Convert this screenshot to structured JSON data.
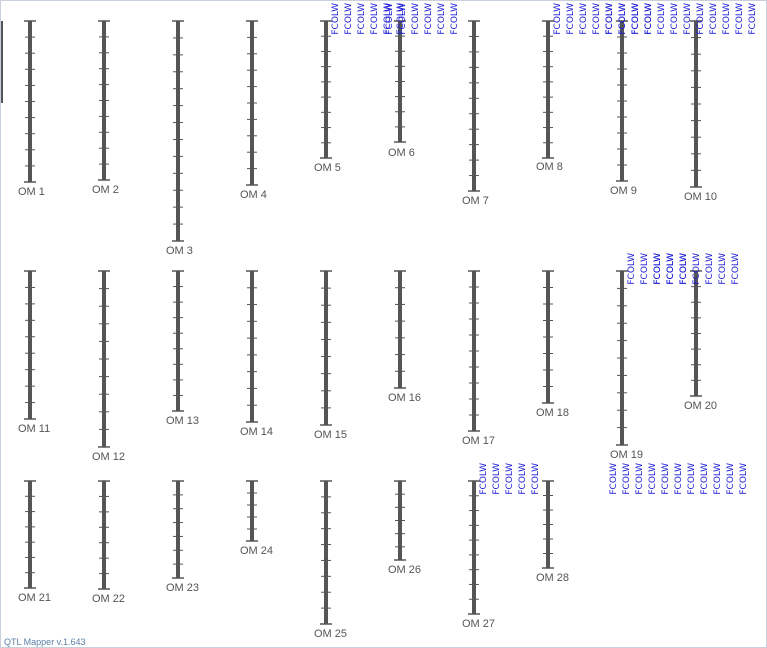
{
  "app": {
    "version_label": "QTL Mapper v.1.643"
  },
  "style": {
    "chromosome_color": "#555555",
    "label_color": "#555555",
    "trait_color": "#1a1ad6",
    "border_color": "#c8d0dc"
  },
  "trait_name": "FCOLW",
  "chromosomes": [
    {
      "label": "OM 1",
      "markers": 9,
      "qtl_traits": 0
    },
    {
      "label": "OM 2",
      "markers": 9,
      "qtl_traits": 0
    },
    {
      "label": "OM 3",
      "markers": 12,
      "qtl_traits": 0
    },
    {
      "label": "OM 4",
      "markers": 9,
      "qtl_traits": 0
    },
    {
      "label": "OM 5",
      "markers": 8,
      "qtl_traits": 6
    },
    {
      "label": "OM 6",
      "markers": 7,
      "qtl_traits": 6
    },
    {
      "label": "OM 7",
      "markers": 10,
      "qtl_traits": 0
    },
    {
      "label": "OM 8",
      "markers": 8,
      "qtl_traits": 8
    },
    {
      "label": "OM 9",
      "markers": 9,
      "qtl_traits": 6
    },
    {
      "label": "OM 10",
      "markers": 9,
      "qtl_traits": 6
    },
    {
      "label": "OM 11",
      "markers": 8,
      "qtl_traits": 0
    },
    {
      "label": "OM 12",
      "markers": 9,
      "qtl_traits": 0
    },
    {
      "label": "OM 13",
      "markers": 8,
      "qtl_traits": 0
    },
    {
      "label": "OM 14",
      "markers": 8,
      "qtl_traits": 0
    },
    {
      "label": "OM 15",
      "markers": 8,
      "qtl_traits": 0
    },
    {
      "label": "OM 16",
      "markers": 6,
      "qtl_traits": 0
    },
    {
      "label": "OM 17",
      "markers": 9,
      "qtl_traits": 0
    },
    {
      "label": "OM 18",
      "markers": 7,
      "qtl_traits": 0
    },
    {
      "label": "OM 19",
      "markers": 9,
      "qtl_traits": 5
    },
    {
      "label": "OM 20",
      "markers": 7,
      "qtl_traits": 7
    },
    {
      "label": "OM 21",
      "markers": 6,
      "qtl_traits": 0
    },
    {
      "label": "OM 22",
      "markers": 6,
      "qtl_traits": 0
    },
    {
      "label": "OM 23",
      "markers": 6,
      "qtl_traits": 0
    },
    {
      "label": "OM 24",
      "markers": 4,
      "qtl_traits": 0
    },
    {
      "label": "OM 25",
      "markers": 8,
      "qtl_traits": 0
    },
    {
      "label": "OM 26",
      "markers": 5,
      "qtl_traits": 0
    },
    {
      "label": "OM 27",
      "markers": 8,
      "qtl_traits": 5
    },
    {
      "label": "OM 28",
      "markers": 5,
      "qtl_traits": 11
    }
  ]
}
